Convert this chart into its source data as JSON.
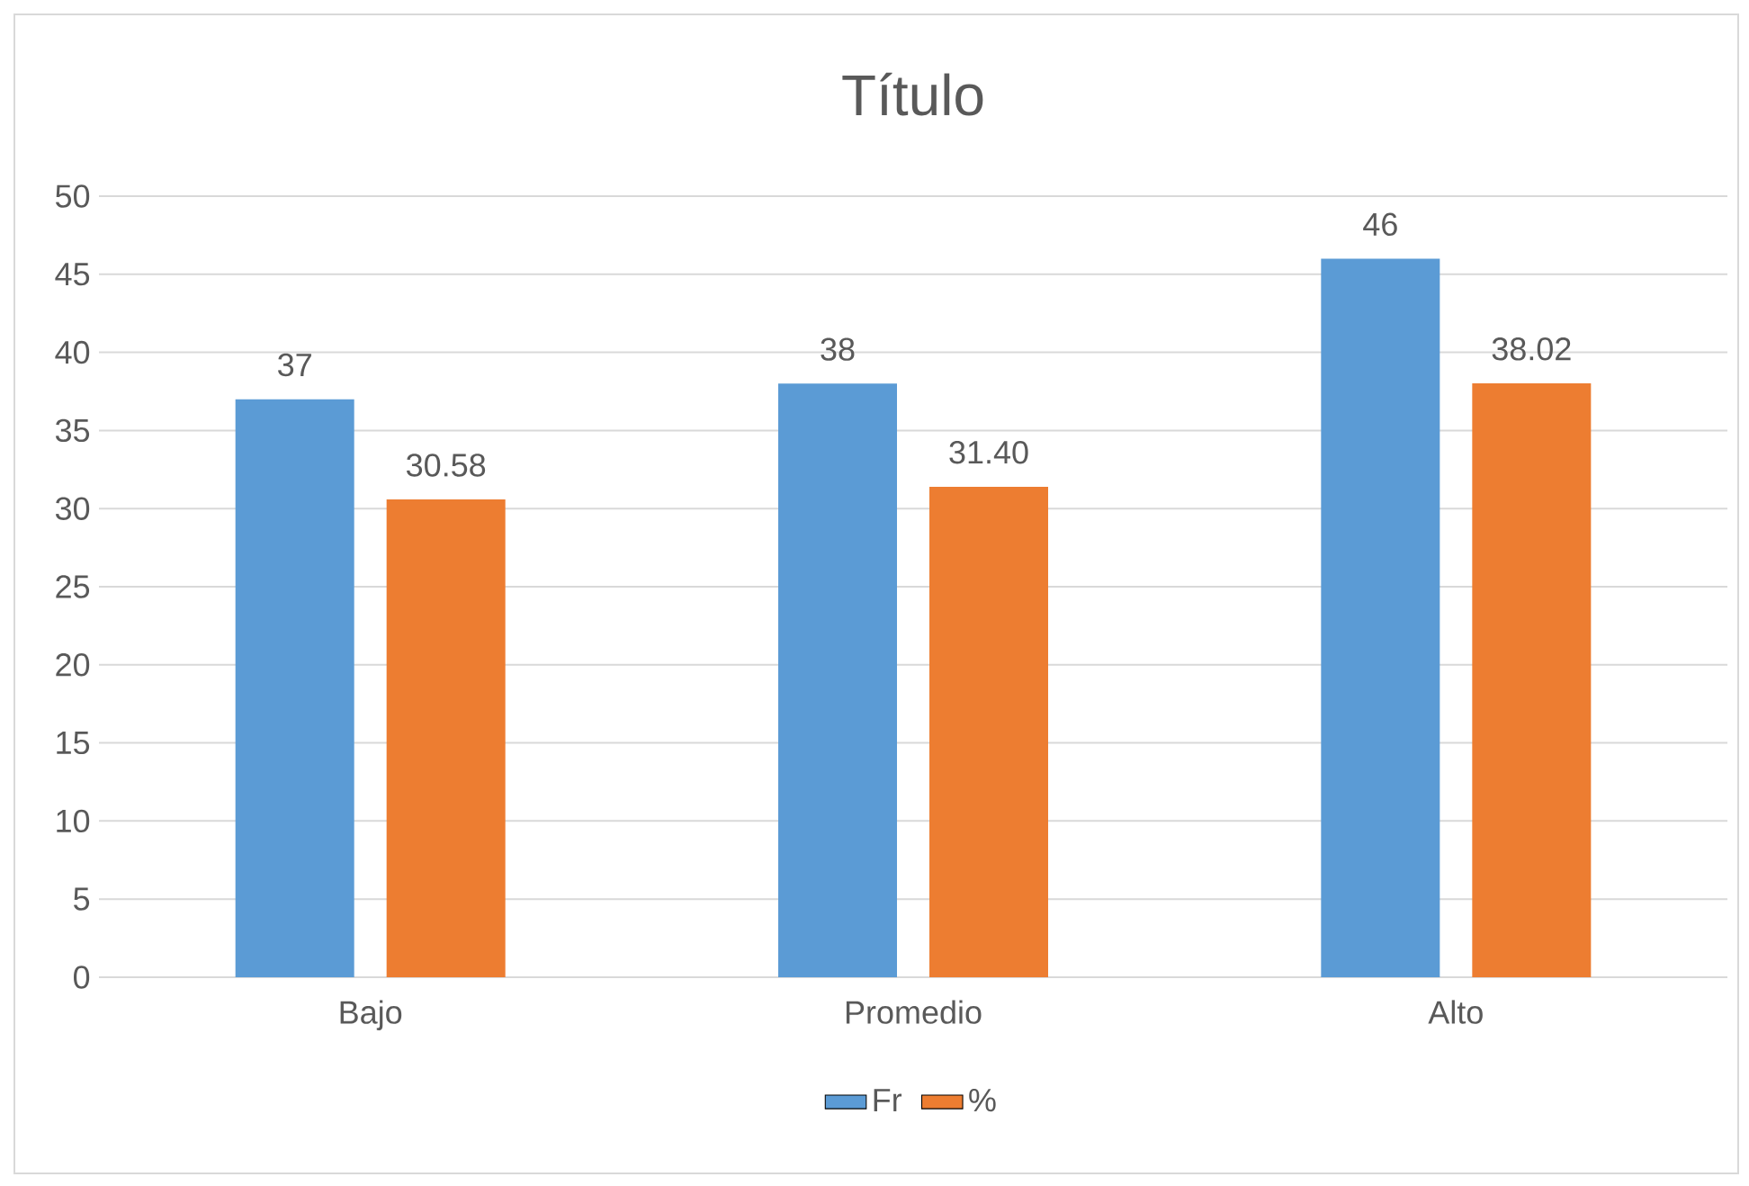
{
  "chart_data": {
    "type": "bar",
    "title": "Título",
    "categories": [
      "Bajo",
      "Promedio",
      "Alto"
    ],
    "series": [
      {
        "name": "Fr",
        "color": "#5b9bd5",
        "values": [
          37,
          38,
          46
        ],
        "value_labels": [
          "37",
          "38",
          "46"
        ]
      },
      {
        "name": "%",
        "color": "#ed7d31",
        "values": [
          30.58,
          31.4,
          38.02
        ],
        "value_labels": [
          "30.58",
          "31.40",
          "38.02"
        ]
      }
    ],
    "ylim": [
      0,
      50
    ],
    "yticks": [
      0,
      5,
      10,
      15,
      20,
      25,
      30,
      35,
      40,
      45,
      50
    ],
    "grid": "y",
    "legend": "bottom"
  }
}
